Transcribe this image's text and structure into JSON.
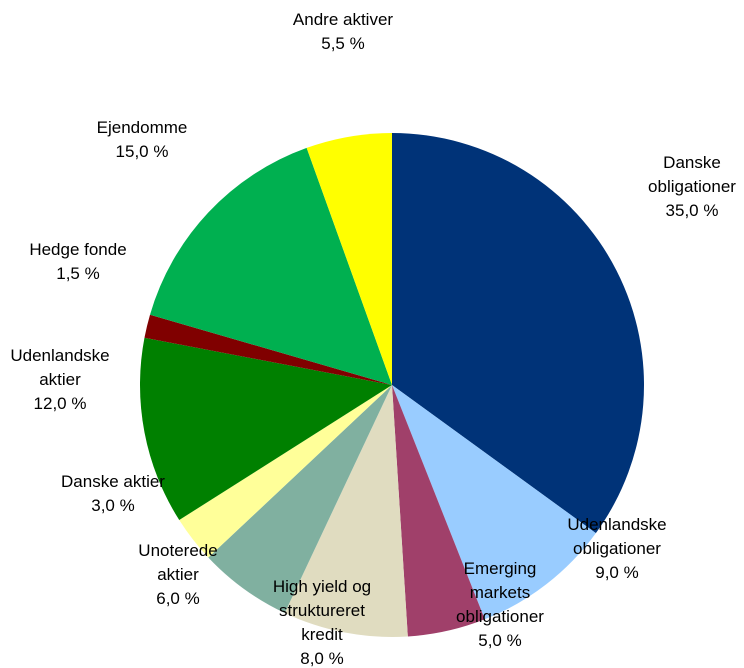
{
  "chart_data": {
    "type": "pie",
    "categories": [
      "Danske\nobligationer",
      "Udenlandske\nobligationer",
      "Emerging\nmarkets\nobligationer",
      "High yield og\nstruktureret\nkredit",
      "Unoterede\naktier",
      "Danske aktier",
      "Udenlandske\naktier",
      "Hedge fonde",
      "Ejendomme",
      "Andre aktiver"
    ],
    "values": [
      35,
      9,
      5,
      8,
      6,
      3,
      12,
      1.5,
      15,
      5.5
    ],
    "value_labels": [
      "35,0 %",
      "9,0 %",
      "5,0 %",
      "8,0 %",
      "6,0 %",
      "3,0 %",
      "12,0 %",
      "1,5 %",
      "15,0 %",
      "5,5 %"
    ],
    "colors": [
      "#003378",
      "#99ccff",
      "#a0406a",
      "#e0dcc0",
      "#80b0a0",
      "#ffff99",
      "#008000",
      "#800000",
      "#00b050",
      "#ffff00"
    ]
  }
}
